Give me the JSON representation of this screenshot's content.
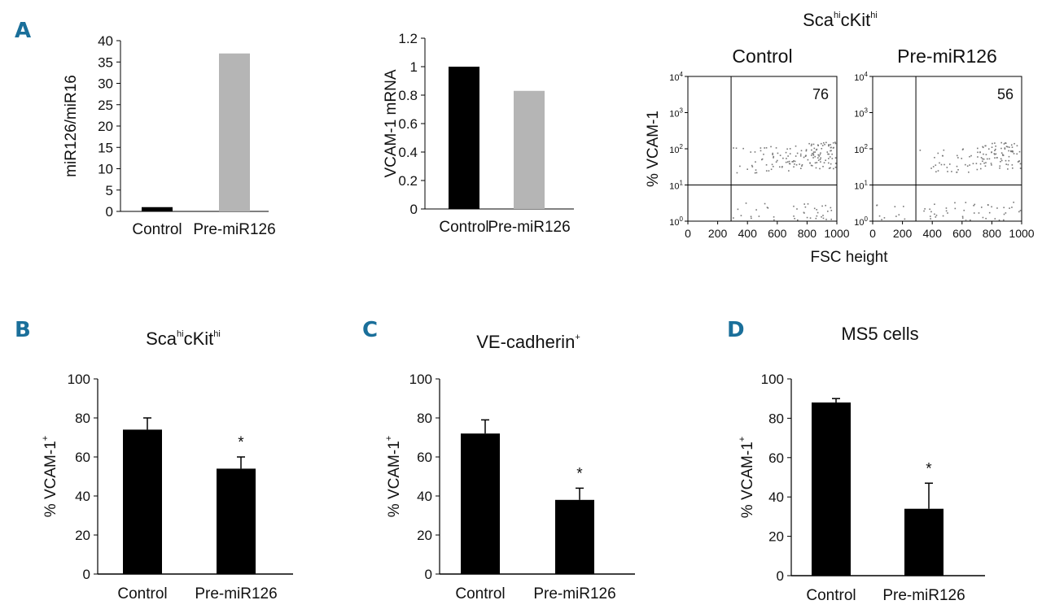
{
  "panel_labels": {
    "a": "A",
    "b": "B",
    "c": "C",
    "d": "D"
  },
  "chart_data": [
    {
      "id": "a1",
      "type": "bar",
      "categories": [
        "Control",
        "Pre-miR126"
      ],
      "values": [
        1,
        37
      ],
      "colors": [
        "#000000",
        "#b5b5b5"
      ],
      "ylabel": "miR126/miR16",
      "ylim": [
        0,
        40
      ],
      "yticks": [
        "0",
        "5",
        "10",
        "15",
        "20",
        "25",
        "30",
        "35",
        "40"
      ]
    },
    {
      "id": "a2",
      "type": "bar",
      "categories": [
        "Control",
        "Pre-miR126"
      ],
      "values": [
        1,
        0.83
      ],
      "colors": [
        "#000000",
        "#b5b5b5"
      ],
      "ylabel": "VCAM-1 mRNA",
      "ylim": [
        0,
        1.2
      ],
      "yticks": [
        "0",
        "0.2",
        "0.4",
        "0.6",
        "0.8",
        "1",
        "1.2"
      ]
    },
    {
      "id": "a3",
      "type": "scatter",
      "title": {
        "main": "Sca",
        "sup1": "hi",
        "mid": "cKit",
        "sup2": "hi"
      },
      "panels": [
        {
          "title": "Control",
          "percent": "76",
          "gate_x": 290,
          "gate_y_log": 1
        },
        {
          "title": "Pre-miR126",
          "percent": "56",
          "gate_x": 290,
          "gate_y_log": 1
        }
      ],
      "xlabel": "FSC height",
      "ylabel": "% VCAM-1",
      "xlim": [
        0,
        1000
      ],
      "xticks": [
        "0",
        "200",
        "400",
        "600",
        "800",
        "1000"
      ],
      "yticks": [
        {
          "base": "10",
          "exp": "0"
        },
        {
          "base": "10",
          "exp": "1"
        },
        {
          "base": "10",
          "exp": "2"
        },
        {
          "base": "10",
          "exp": "3"
        },
        {
          "base": "10",
          "exp": "4"
        }
      ]
    },
    {
      "id": "b",
      "type": "bar",
      "title": {
        "main": "Sca",
        "sup1": "hi",
        "mid": "cKit",
        "sup2": "hi"
      },
      "categories": [
        "Control",
        "Pre-miR126"
      ],
      "values": [
        74,
        54
      ],
      "errors": [
        6,
        6
      ],
      "significance": [
        "",
        "*"
      ],
      "ylabel": {
        "main": "% VCAM-1",
        "sup": "+"
      },
      "ylim": [
        0,
        100
      ],
      "yticks": [
        "0",
        "20",
        "40",
        "60",
        "80",
        "100"
      ]
    },
    {
      "id": "c",
      "type": "bar",
      "title": {
        "main": "VE-cadherin",
        "sup": "+"
      },
      "categories": [
        "Control",
        "Pre-miR126"
      ],
      "values": [
        72,
        38
      ],
      "errors": [
        7,
        6
      ],
      "significance": [
        "",
        "*"
      ],
      "ylabel": {
        "main": "% VCAM-1",
        "sup": "+"
      },
      "ylim": [
        0,
        100
      ],
      "yticks": [
        "0",
        "20",
        "40",
        "60",
        "80",
        "100"
      ]
    },
    {
      "id": "d",
      "type": "bar",
      "title": {
        "main": "MS5 cells"
      },
      "categories": [
        "Control",
        "Pre-miR126"
      ],
      "values": [
        88,
        34
      ],
      "errors": [
        2,
        13
      ],
      "significance": [
        "",
        "*"
      ],
      "ylabel": {
        "main": "% VCAM-1",
        "sup": "+"
      },
      "ylim": [
        0,
        100
      ],
      "yticks": [
        "0",
        "20",
        "40",
        "60",
        "80",
        "100"
      ]
    }
  ]
}
